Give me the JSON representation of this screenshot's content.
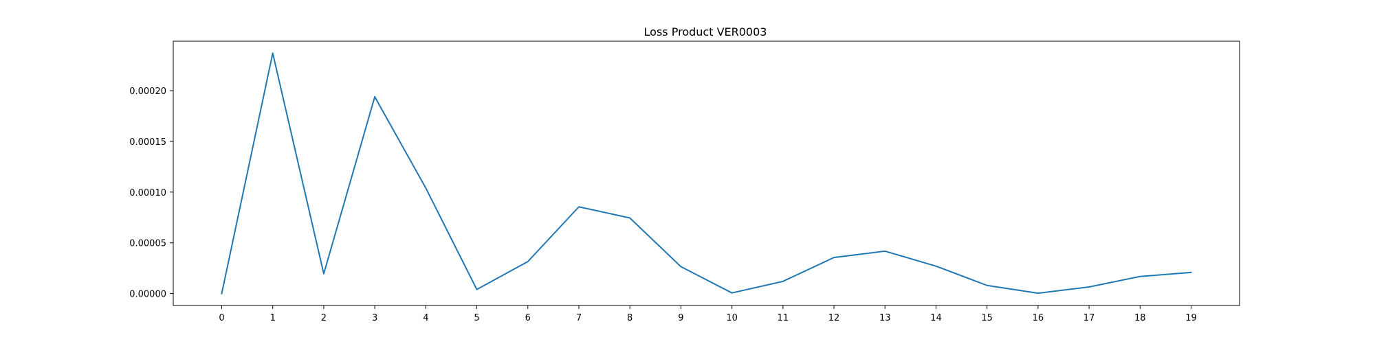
{
  "chart_data": {
    "type": "line",
    "title": "Loss Product VER0003",
    "xlabel": "",
    "ylabel": "",
    "x": [
      0,
      1,
      2,
      3,
      4,
      5,
      6,
      7,
      8,
      9,
      10,
      11,
      12,
      13,
      14,
      15,
      16,
      17,
      18,
      19
    ],
    "series": [
      {
        "values": [
          0.0,
          0.000237,
          1.95e-05,
          0.000194,
          0.000104,
          4e-06,
          3.15e-05,
          8.55e-05,
          7.45e-05,
          2.65e-05,
          6e-07,
          1.2e-05,
          3.55e-05,
          4.18e-05,
          2.7e-05,
          8e-06,
          3e-07,
          6.5e-06,
          1.68e-05,
          2.08e-05
        ],
        "color": "#1f77b4"
      }
    ],
    "xticks": [
      "0",
      "1",
      "2",
      "3",
      "4",
      "5",
      "6",
      "7",
      "8",
      "9",
      "10",
      "11",
      "12",
      "13",
      "14",
      "15",
      "16",
      "17",
      "18",
      "19"
    ],
    "yticks": [
      0.0,
      5e-05,
      0.0001,
      0.00015,
      0.0002
    ],
    "ytick_labels": [
      "0.00000",
      "0.00005",
      "0.00010",
      "0.00015",
      "0.00020"
    ],
    "xlim": [
      -0.95,
      19.95
    ],
    "ylim": [
      -1.18e-05,
      0.0002488
    ],
    "grid": false,
    "colors": {
      "line": "#1f77b4",
      "axes": "#000000",
      "background": "#ffffff"
    }
  }
}
